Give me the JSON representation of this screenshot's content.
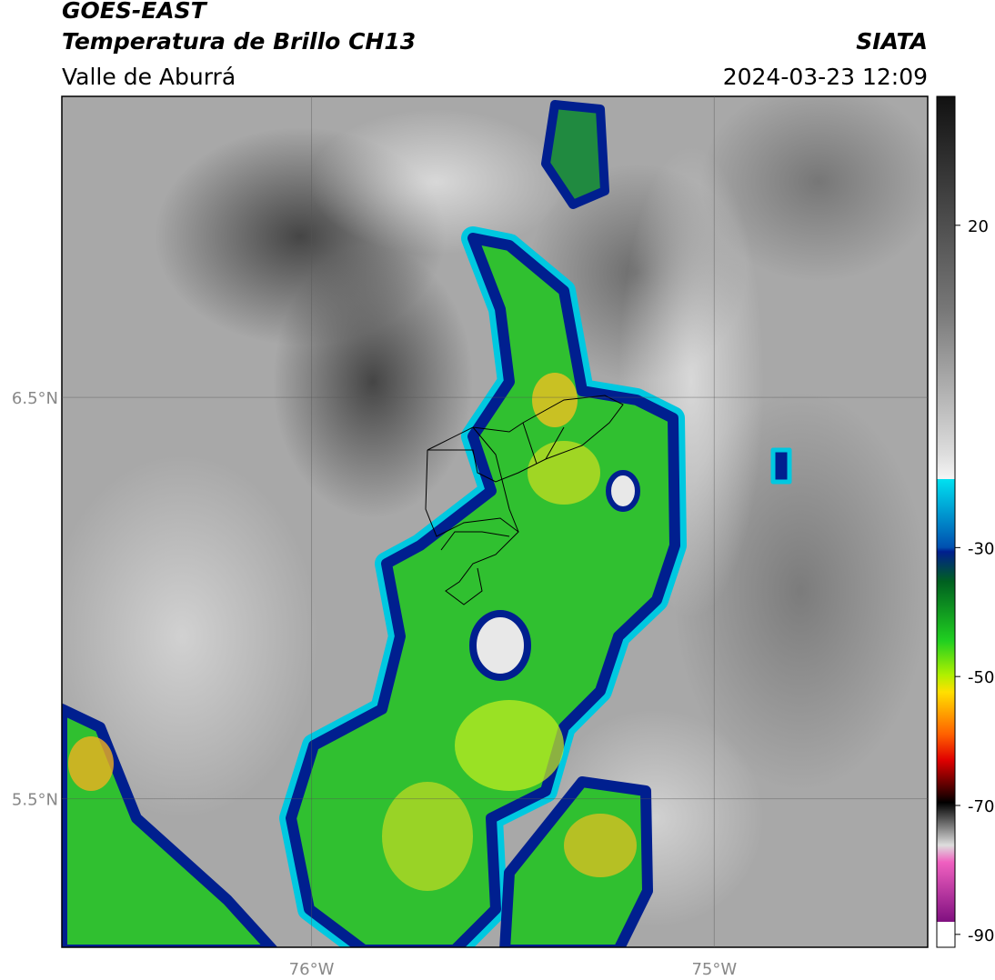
{
  "header": {
    "title": "GOES-EAST",
    "subtitle": "Temperatura de Brillo CH13",
    "region": "Valle de Aburrá",
    "source": "SIATA",
    "datetime": "2024-03-23 12:09"
  },
  "map": {
    "xlim": [
      -76.62,
      -74.47
    ],
    "ylim": [
      5.13,
      7.25
    ],
    "xticks": [
      {
        "value": -76,
        "label": "76°W"
      },
      {
        "value": -75,
        "label": "75°W"
      }
    ],
    "yticks": [
      {
        "value": 6.5,
        "label": "6.5°N"
      },
      {
        "value": 5.5,
        "label": "5.5°N"
      }
    ],
    "grid": true
  },
  "colorbar": {
    "lim": [
      -92,
      40
    ],
    "ticks": [
      20,
      -30,
      -50,
      -70,
      -90
    ]
  }
}
